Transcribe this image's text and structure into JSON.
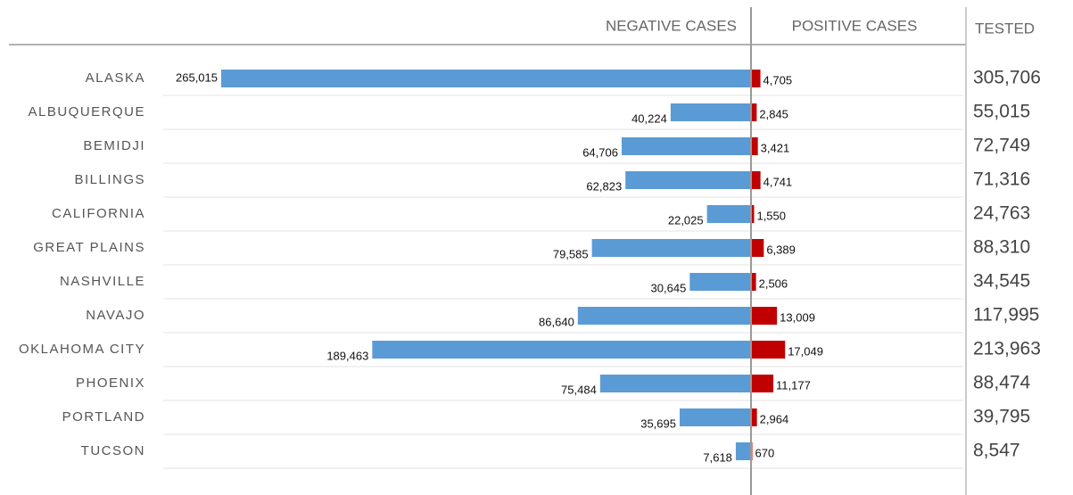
{
  "chart_data": {
    "type": "diverging-bar",
    "categories": [
      "ALASKA",
      "ALBUQUERQUE",
      "BEMIDJI",
      "BILLINGS",
      "CALIFORNIA",
      "GREAT PLAINS",
      "NASHVILLE",
      "NAVAJO",
      "OKLAHOMA CITY",
      "PHOENIX",
      "PORTLAND",
      "TUCSON"
    ],
    "series": [
      {
        "name": "NEGATIVE CASES",
        "color": "#5b9bd5",
        "values": [
          265015,
          40224,
          64706,
          62823,
          22025,
          79585,
          30645,
          86640,
          189463,
          75484,
          35695,
          7618
        ],
        "value_labels": [
          "265,015",
          "40,224",
          "64,706",
          "62,823",
          "22,025",
          "79,585",
          "30,645",
          "86,640",
          "189,463",
          "75,484",
          "35,695",
          "7,618"
        ]
      },
      {
        "name": "POSITIVE CASES",
        "color": "#c00000",
        "values": [
          4705,
          2845,
          3421,
          4741,
          1550,
          6389,
          2506,
          13009,
          17049,
          11177,
          2964,
          670
        ],
        "value_labels": [
          "4,705",
          "2,845",
          "3,421",
          "4,741",
          "1,550",
          "6,389",
          "2,506",
          "13,009",
          "17,049",
          "11,177",
          "2,964",
          "670"
        ]
      },
      {
        "name": "TESTED",
        "values": [
          305706,
          55015,
          72749,
          71316,
          24763,
          88310,
          34545,
          117995,
          213963,
          88474,
          39795,
          8547
        ],
        "value_labels": [
          "305,706",
          "55,015",
          "72,749",
          "71,316",
          "24,763",
          "88,310",
          "34,545",
          "117,995",
          "213,963",
          "88,474",
          "39,795",
          "8,547"
        ]
      }
    ]
  }
}
